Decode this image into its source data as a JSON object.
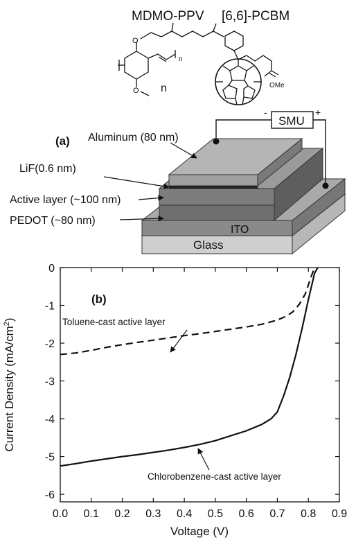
{
  "chemistry": {
    "mdmo_ppv_label": "MDMO-PPV",
    "pcbm_label": "[6,6]-PCBM",
    "subscript_n": "n",
    "repeat_n": "n",
    "ome_label": "OMe"
  },
  "device": {
    "panel_label": "(a)",
    "smu_label": "SMU",
    "minus_sign": "-",
    "plus_sign": "+",
    "layers": {
      "aluminum": "Aluminum (80 nm)",
      "lif": "LiF(0.6 nm)",
      "active": "Active layer (~100 nm)",
      "pedot": "PEDOT (~80 nm)",
      "ito": "ITO",
      "glass": "Glass"
    }
  },
  "chart_data": {
    "type": "line",
    "panel_label": "(b)",
    "xlabel": "Voltage (V)",
    "ylabel_main": "Current Density (mA/cm",
    "ylabel_sup": "2",
    "ylabel_close": ")",
    "xlim": [
      0.0,
      0.9
    ],
    "ylim": [
      -6.2,
      0
    ],
    "x_ticks": [
      "0.0",
      "0.1",
      "0.2",
      "0.3",
      "0.4",
      "0.5",
      "0.6",
      "0.7",
      "0.8",
      "0.9"
    ],
    "y_ticks": [
      "0",
      "-1",
      "-2",
      "-3",
      "-4",
      "-5",
      "-6"
    ],
    "series": [
      {
        "name": "Toluene-cast active layer",
        "style": "dashed",
        "x": [
          0.0,
          0.05,
          0.1,
          0.15,
          0.2,
          0.25,
          0.3,
          0.35,
          0.4,
          0.45,
          0.5,
          0.55,
          0.6,
          0.65,
          0.7,
          0.73,
          0.75,
          0.77,
          0.79,
          0.8,
          0.81,
          0.82
        ],
        "y": [
          -2.3,
          -2.26,
          -2.19,
          -2.11,
          -2.04,
          -1.98,
          -1.92,
          -1.86,
          -1.8,
          -1.75,
          -1.69,
          -1.63,
          -1.57,
          -1.5,
          -1.39,
          -1.28,
          -1.17,
          -0.98,
          -0.7,
          -0.46,
          -0.22,
          0.0
        ]
      },
      {
        "name": "Chlorobenzene-cast active layer",
        "style": "solid",
        "x": [
          0.0,
          0.05,
          0.1,
          0.15,
          0.2,
          0.25,
          0.3,
          0.35,
          0.4,
          0.45,
          0.5,
          0.55,
          0.6,
          0.65,
          0.68,
          0.7,
          0.72,
          0.74,
          0.76,
          0.78,
          0.8,
          0.82,
          0.83
        ],
        "y": [
          -5.25,
          -5.19,
          -5.12,
          -5.06,
          -5.0,
          -4.95,
          -4.89,
          -4.83,
          -4.76,
          -4.68,
          -4.58,
          -4.45,
          -4.32,
          -4.15,
          -4.0,
          -3.82,
          -3.4,
          -2.9,
          -2.3,
          -1.6,
          -0.85,
          -0.15,
          0.0
        ]
      }
    ]
  }
}
